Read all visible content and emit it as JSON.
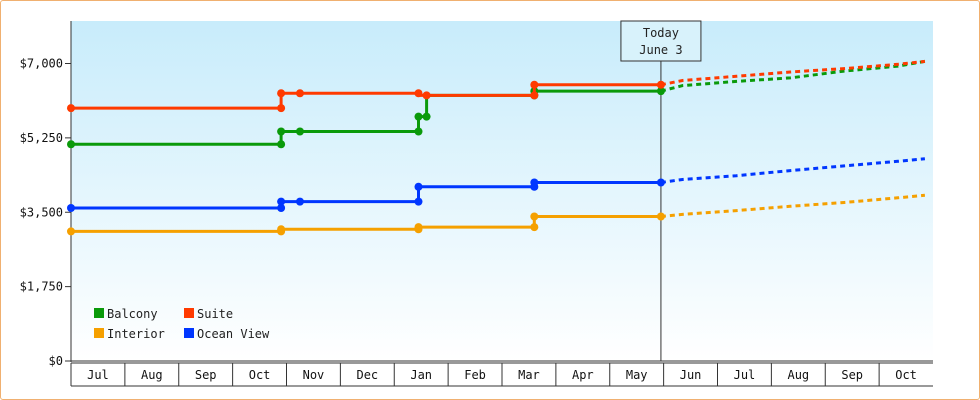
{
  "chart_data": {
    "type": "line",
    "ylim": [
      0,
      8000
    ],
    "y_ticks": [
      {
        "value": 0,
        "label": "$0"
      },
      {
        "value": 1750,
        "label": "$1,750"
      },
      {
        "value": 3500,
        "label": "$3,500"
      },
      {
        "value": 5250,
        "label": "$5,250"
      },
      {
        "value": 7000,
        "label": "$7,000"
      }
    ],
    "x_tick_labels": [
      "Jul",
      "Aug",
      "Sep",
      "Oct",
      "Nov",
      "Dec",
      "Jan",
      "Feb",
      "Mar",
      "Apr",
      "May",
      "Jun",
      "Jul",
      "Aug",
      "Sep",
      "Oct"
    ],
    "today": {
      "line1": "Today",
      "line2": "June 3",
      "x": 10.6
    },
    "grid": false,
    "legend_placement": "bottom-left",
    "series": [
      {
        "name": "Balcony",
        "color": "#0a9a0a",
        "points": [
          [
            -0.35,
            5100
          ],
          [
            3.55,
            5100
          ],
          [
            3.55,
            5400
          ],
          [
            3.9,
            5400
          ],
          [
            6.1,
            5400
          ],
          [
            6.1,
            5750
          ],
          [
            6.25,
            5750
          ],
          [
            6.25,
            6250
          ],
          [
            8.25,
            6250
          ],
          [
            8.25,
            6350
          ],
          [
            10.6,
            6350
          ]
        ],
        "markers": [
          [
            -0.35,
            5100
          ],
          [
            3.55,
            5100
          ],
          [
            3.55,
            5400
          ],
          [
            3.9,
            5400
          ],
          [
            6.1,
            5400
          ],
          [
            6.1,
            5750
          ],
          [
            6.25,
            5750
          ],
          [
            8.25,
            6250
          ],
          [
            8.25,
            6350
          ],
          [
            10.6,
            6350
          ]
        ],
        "projection": [
          [
            10.6,
            6350
          ],
          [
            11.0,
            6480
          ],
          [
            12.0,
            6580
          ],
          [
            13.0,
            6660
          ],
          [
            14.0,
            6820
          ],
          [
            15.0,
            6940
          ],
          [
            15.5,
            7050
          ]
        ]
      },
      {
        "name": "Suite",
        "color": "#ff3a00",
        "points": [
          [
            -0.35,
            5950
          ],
          [
            3.55,
            5950
          ],
          [
            3.55,
            6300
          ],
          [
            3.9,
            6300
          ],
          [
            6.1,
            6300
          ],
          [
            6.1,
            6250
          ],
          [
            8.25,
            6250
          ],
          [
            8.25,
            6500
          ],
          [
            10.6,
            6500
          ]
        ],
        "markers": [
          [
            -0.35,
            5950
          ],
          [
            3.55,
            5950
          ],
          [
            3.55,
            6300
          ],
          [
            3.9,
            6300
          ],
          [
            6.1,
            6300
          ],
          [
            6.25,
            6250
          ],
          [
            8.25,
            6250
          ],
          [
            8.25,
            6500
          ],
          [
            10.6,
            6500
          ]
        ],
        "projection": [
          [
            10.6,
            6500
          ],
          [
            11.0,
            6600
          ],
          [
            12.0,
            6700
          ],
          [
            13.0,
            6800
          ],
          [
            14.0,
            6880
          ],
          [
            15.0,
            6980
          ],
          [
            15.5,
            7050
          ]
        ]
      },
      {
        "name": "Ocean View",
        "color": "#0036ff",
        "points": [
          [
            -0.35,
            3600
          ],
          [
            3.55,
            3600
          ],
          [
            3.55,
            3750
          ],
          [
            3.9,
            3750
          ],
          [
            6.1,
            3750
          ],
          [
            6.1,
            4100
          ],
          [
            8.25,
            4100
          ],
          [
            8.25,
            4200
          ],
          [
            10.6,
            4200
          ]
        ],
        "markers": [
          [
            -0.35,
            3600
          ],
          [
            3.55,
            3600
          ],
          [
            3.55,
            3750
          ],
          [
            3.9,
            3750
          ],
          [
            6.1,
            3750
          ],
          [
            6.1,
            4100
          ],
          [
            8.25,
            4100
          ],
          [
            8.25,
            4200
          ],
          [
            10.6,
            4200
          ]
        ],
        "projection": [
          [
            10.6,
            4200
          ],
          [
            11.0,
            4270
          ],
          [
            12.0,
            4360
          ],
          [
            13.0,
            4480
          ],
          [
            14.0,
            4590
          ],
          [
            15.0,
            4700
          ],
          [
            15.5,
            4760
          ]
        ]
      },
      {
        "name": "Interior",
        "color": "#f5a000",
        "points": [
          [
            -0.35,
            3050
          ],
          [
            3.55,
            3050
          ],
          [
            3.55,
            3100
          ],
          [
            6.1,
            3100
          ],
          [
            6.1,
            3150
          ],
          [
            8.25,
            3150
          ],
          [
            8.25,
            3400
          ],
          [
            10.6,
            3400
          ]
        ],
        "markers": [
          [
            -0.35,
            3050
          ],
          [
            3.55,
            3050
          ],
          [
            3.55,
            3100
          ],
          [
            6.1,
            3100
          ],
          [
            6.1,
            3150
          ],
          [
            8.25,
            3150
          ],
          [
            8.25,
            3400
          ],
          [
            10.6,
            3400
          ]
        ],
        "projection": [
          [
            10.6,
            3400
          ],
          [
            11.0,
            3450
          ],
          [
            12.0,
            3540
          ],
          [
            13.0,
            3640
          ],
          [
            14.0,
            3730
          ],
          [
            15.0,
            3840
          ],
          [
            15.5,
            3900
          ]
        ]
      }
    ],
    "legend_order": [
      "Balcony",
      "Suite",
      "Interior",
      "Ocean View"
    ]
  }
}
